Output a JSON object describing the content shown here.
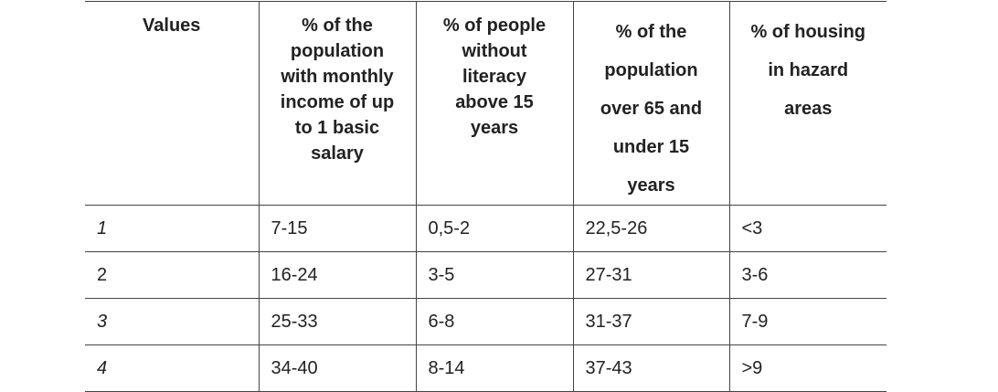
{
  "table": {
    "header": [
      [
        "Values"
      ],
      [
        "% of the",
        "population",
        "with monthly",
        "income of up",
        "to 1 basic",
        "salary"
      ],
      [
        "% of people",
        "without",
        "literacy",
        "above 15",
        "years"
      ],
      [
        "% of the",
        "population",
        "over 65 and",
        "under 15",
        "years"
      ],
      [
        "% of housing",
        "in hazard",
        "areas"
      ]
    ],
    "rows": [
      [
        "1",
        "7-15",
        "0,5-2",
        "22,5-26",
        "<3"
      ],
      [
        "2",
        "16-24",
        "3-5",
        "27-31",
        "3-6"
      ],
      [
        "3",
        "25-33",
        "6-8",
        "31-37",
        "7-9"
      ],
      [
        "4",
        "34-40",
        "8-14",
        "37-43",
        ">9"
      ]
    ]
  }
}
